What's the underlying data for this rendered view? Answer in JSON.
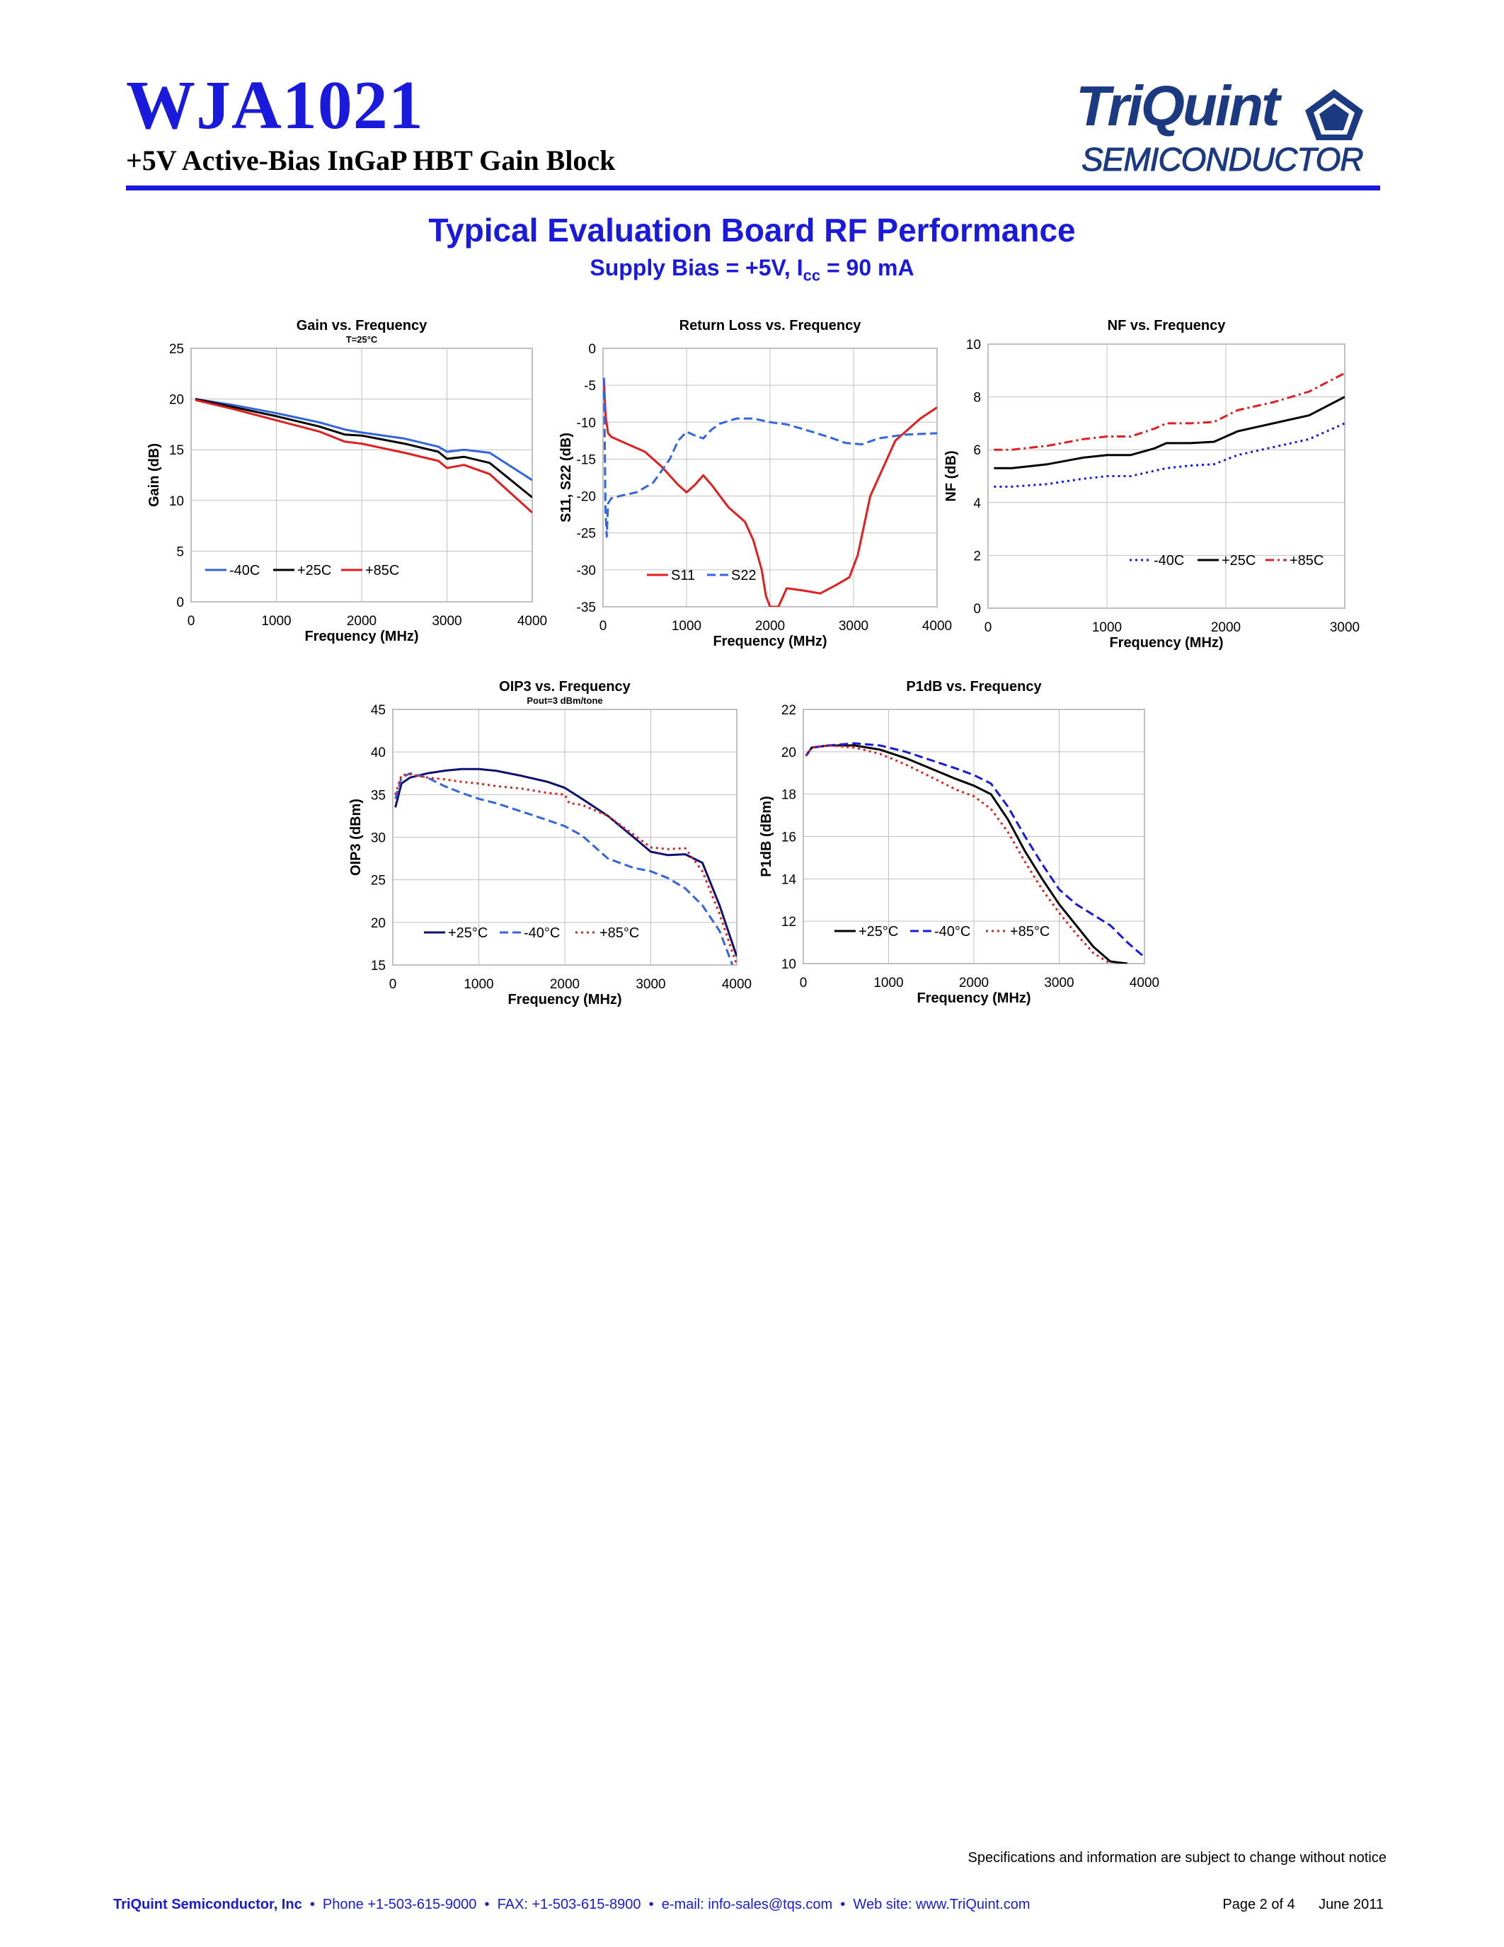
{
  "header": {
    "part_number": "WJA1021",
    "subtitle": "+5V Active-Bias InGaP HBT Gain Block",
    "logo_line1": "TriQuint",
    "logo_line2": "SEMICONDUCTOR"
  },
  "page_title": "Typical Evaluation Board RF Performance",
  "page_subtitle": {
    "prefix": "Supply Bias = +5V, I",
    "subscript": "cc",
    "suffix": " = 90 mA"
  },
  "colors": {
    "brand_blue": "#1a1adc",
    "red": "#e02020",
    "blue": "#3366dd",
    "black": "#000000",
    "navy": "#101070"
  },
  "chart_data": [
    {
      "type": "line",
      "title": "Gain vs. Frequency",
      "subtitle": "T=25°C",
      "xlabel": "Frequency (MHz)",
      "ylabel": "Gain (dB)",
      "xlim": [
        0,
        4000
      ],
      "ylim": [
        0,
        25
      ],
      "xticks": [
        0,
        1000,
        2000,
        3000,
        4000
      ],
      "yticks": [
        0,
        5,
        10,
        15,
        20,
        25
      ],
      "grid": true,
      "legend_position": "bottom-left",
      "series": [
        {
          "name": "-40C",
          "color": "#3366dd",
          "dash": "solid",
          "x": [
            50,
            500,
            1000,
            1500,
            1800,
            2000,
            2500,
            2900,
            3000,
            3200,
            3500,
            4000
          ],
          "y": [
            20.0,
            19.4,
            18.6,
            17.7,
            17.0,
            16.7,
            16.1,
            15.3,
            14.8,
            15.0,
            14.7,
            12.0
          ]
        },
        {
          "name": "+25C",
          "color": "#000000",
          "dash": "solid",
          "x": [
            50,
            500,
            1000,
            1500,
            1800,
            2000,
            2500,
            2900,
            3000,
            3200,
            3500,
            4000
          ],
          "y": [
            20.0,
            19.2,
            18.3,
            17.3,
            16.5,
            16.4,
            15.6,
            14.8,
            14.1,
            14.3,
            13.7,
            10.3
          ]
        },
        {
          "name": "+85C",
          "color": "#e02020",
          "dash": "solid",
          "x": [
            50,
            500,
            1000,
            1500,
            1800,
            2000,
            2500,
            2900,
            3000,
            3200,
            3500,
            4000
          ],
          "y": [
            19.9,
            19.0,
            17.9,
            16.8,
            15.8,
            15.6,
            14.7,
            13.9,
            13.2,
            13.5,
            12.6,
            8.8
          ]
        }
      ]
    },
    {
      "type": "line",
      "title": "Return Loss vs. Frequency",
      "xlabel": "Frequency (MHz)",
      "ylabel": "S11, S22 (dB)",
      "xlim": [
        0,
        4000
      ],
      "ylim": [
        -35,
        0
      ],
      "xticks": [
        0,
        1000,
        2000,
        3000,
        4000
      ],
      "yticks": [
        0,
        -5,
        -10,
        -15,
        -20,
        -25,
        -30,
        -35
      ],
      "grid": true,
      "legend_position": "bottom-left",
      "series": [
        {
          "name": "S11",
          "color": "#e02020",
          "dash": "solid",
          "x": [
            10,
            30,
            60,
            100,
            300,
            500,
            700,
            900,
            1000,
            1100,
            1200,
            1300,
            1500,
            1700,
            1800,
            1900,
            1950,
            2000,
            2100,
            2200,
            2400,
            2600,
            2800,
            2950,
            3050,
            3200,
            3500,
            3800,
            4000
          ],
          "y": [
            -4,
            -9,
            -11.5,
            -12,
            -13,
            -14,
            -16,
            -18.5,
            -19.5,
            -18.5,
            -17.2,
            -18.5,
            -21.5,
            -23.5,
            -26,
            -30,
            -33.5,
            -35,
            -35,
            -32.5,
            -32.8,
            -33.2,
            -32,
            -31,
            -28,
            -20,
            -12.5,
            -9.5,
            -8
          ]
        },
        {
          "name": "S22",
          "color": "#3366dd",
          "dash": "dashed",
          "x": [
            10,
            20,
            30,
            45,
            60,
            100,
            200,
            400,
            600,
            800,
            900,
            1000,
            1100,
            1200,
            1300,
            1400,
            1600,
            1800,
            2000,
            2200,
            2500,
            2700,
            2900,
            3100,
            3300,
            3600,
            4000
          ],
          "y": [
            -4,
            -12,
            -22,
            -25.5,
            -21,
            -20.3,
            -20,
            -19.5,
            -18.2,
            -15,
            -12.5,
            -11.3,
            -11.8,
            -12.2,
            -11,
            -10.2,
            -9.5,
            -9.5,
            -10,
            -10.3,
            -11.3,
            -12,
            -12.8,
            -13,
            -12.2,
            -11.7,
            -11.5
          ]
        }
      ]
    },
    {
      "type": "line",
      "title": "NF vs. Frequency",
      "xlabel": "Frequency (MHz)",
      "ylabel": "NF (dB)",
      "xlim": [
        0,
        3000
      ],
      "ylim": [
        0,
        10
      ],
      "xticks": [
        0,
        1000,
        2000,
        3000
      ],
      "yticks": [
        0,
        2,
        4,
        6,
        8,
        10
      ],
      "grid": true,
      "legend_position": "middle-right",
      "series": [
        {
          "name": "-40C",
          "color": "#1a1adc",
          "dash": "dotted",
          "x": [
            50,
            200,
            500,
            800,
            1000,
            1200,
            1400,
            1500,
            1700,
            1900,
            2100,
            2400,
            2700,
            3000
          ],
          "y": [
            4.6,
            4.6,
            4.7,
            4.9,
            5.0,
            5.0,
            5.2,
            5.3,
            5.4,
            5.45,
            5.8,
            6.1,
            6.4,
            7.0
          ]
        },
        {
          "name": "+25C",
          "color": "#000000",
          "dash": "solid",
          "x": [
            50,
            200,
            500,
            800,
            1000,
            1200,
            1400,
            1500,
            1700,
            1900,
            2100,
            2400,
            2700,
            3000
          ],
          "y": [
            5.3,
            5.3,
            5.45,
            5.7,
            5.8,
            5.8,
            6.05,
            6.25,
            6.25,
            6.3,
            6.7,
            7.0,
            7.3,
            8.0
          ]
        },
        {
          "name": "+85C",
          "color": "#e02020",
          "dash": "dashdot",
          "x": [
            50,
            200,
            500,
            800,
            1000,
            1200,
            1400,
            1500,
            1700,
            1900,
            2100,
            2400,
            2700,
            3000
          ],
          "y": [
            6.0,
            6.0,
            6.15,
            6.4,
            6.5,
            6.5,
            6.8,
            7.0,
            7.0,
            7.05,
            7.5,
            7.8,
            8.2,
            8.9
          ]
        }
      ]
    },
    {
      "type": "line",
      "title": "OIP3 vs. Frequency",
      "subtitle": "Pout=3 dBm/tone",
      "xlabel": "Frequency (MHz)",
      "ylabel": "OIP3 (dBm)",
      "xlim": [
        0,
        4000
      ],
      "ylim": [
        15,
        45
      ],
      "xticks": [
        0,
        1000,
        2000,
        3000,
        4000
      ],
      "yticks": [
        15,
        20,
        25,
        30,
        35,
        40,
        45
      ],
      "grid": true,
      "legend_position": "bottom-left",
      "series": [
        {
          "name": "+25°C",
          "color": "#101070",
          "dash": "solid",
          "x": [
            30,
            100,
            200,
            400,
            600,
            800,
            1000,
            1200,
            1500,
            1800,
            2000,
            2200,
            2500,
            2800,
            3000,
            3200,
            3400,
            3600,
            3800,
            4000
          ],
          "y": [
            33.5,
            36.3,
            37.0,
            37.5,
            37.8,
            38.0,
            38.0,
            37.8,
            37.2,
            36.5,
            35.8,
            34.5,
            32.5,
            30.0,
            28.3,
            27.9,
            28.0,
            27.0,
            22.0,
            16.0
          ]
        },
        {
          "name": "-40°C",
          "color": "#3366dd",
          "dash": "dashed",
          "x": [
            30,
            100,
            200,
            400,
            600,
            800,
            1000,
            1200,
            1500,
            1800,
            2000,
            2200,
            2500,
            2800,
            3000,
            3200,
            3400,
            3600,
            3800,
            3950
          ],
          "y": [
            34.5,
            37.0,
            37.5,
            37.0,
            36.0,
            35.2,
            34.5,
            34.0,
            33.0,
            32.0,
            31.3,
            30.2,
            27.5,
            26.4,
            26.0,
            25.2,
            24.0,
            22.0,
            19.0,
            15.0
          ]
        },
        {
          "name": "+85°C",
          "color": "#e02020",
          "dash": "dotted",
          "x": [
            30,
            100,
            200,
            400,
            600,
            800,
            1000,
            1200,
            1500,
            1800,
            2000,
            2050,
            2200,
            2500,
            2800,
            3000,
            3200,
            3400,
            3600,
            3800,
            4000
          ],
          "y": [
            35.0,
            37.3,
            37.4,
            37.0,
            36.8,
            36.5,
            36.3,
            36.0,
            35.7,
            35.2,
            35.0,
            34.0,
            33.8,
            32.5,
            30.3,
            28.8,
            28.6,
            28.7,
            26.0,
            21.0,
            15.0
          ]
        }
      ]
    },
    {
      "type": "line",
      "title": "P1dB vs. Frequency",
      "xlabel": "Frequency (MHz)",
      "ylabel": "P1dB (dBm)",
      "xlim": [
        0,
        4000
      ],
      "ylim": [
        10,
        22
      ],
      "xticks": [
        0,
        1000,
        2000,
        3000,
        4000
      ],
      "yticks": [
        10,
        12,
        14,
        16,
        18,
        20,
        22
      ],
      "grid": true,
      "legend_position": "bottom-left",
      "series": [
        {
          "name": "+25°C",
          "color": "#000000",
          "dash": "solid",
          "x": [
            30,
            100,
            300,
            600,
            900,
            1200,
            1500,
            1800,
            2000,
            2200,
            2400,
            2600,
            2800,
            3000,
            3200,
            3400,
            3600,
            3800
          ],
          "y": [
            19.8,
            20.2,
            20.3,
            20.3,
            20.1,
            19.7,
            19.2,
            18.7,
            18.4,
            18.0,
            16.8,
            15.3,
            14.0,
            12.8,
            11.8,
            10.8,
            10.1,
            10.0
          ]
        },
        {
          "name": "-40°C",
          "color": "#1a1adc",
          "dash": "dashed",
          "x": [
            30,
            100,
            300,
            600,
            900,
            1200,
            1500,
            1800,
            2000,
            2200,
            2400,
            2600,
            2800,
            3000,
            3200,
            3400,
            3600,
            3800,
            4000
          ],
          "y": [
            19.8,
            20.2,
            20.3,
            20.4,
            20.3,
            20.0,
            19.6,
            19.2,
            18.9,
            18.5,
            17.4,
            16.0,
            14.7,
            13.5,
            12.8,
            12.3,
            11.8,
            11.0,
            10.3
          ]
        },
        {
          "name": "+85°C",
          "color": "#e02020",
          "dash": "dotted",
          "x": [
            30,
            100,
            300,
            600,
            900,
            1200,
            1500,
            1800,
            2000,
            2200,
            2400,
            2600,
            2800,
            3000,
            3200,
            3400,
            3600
          ],
          "y": [
            19.8,
            20.2,
            20.3,
            20.2,
            19.9,
            19.4,
            18.8,
            18.2,
            17.9,
            17.3,
            16.2,
            14.8,
            13.5,
            12.4,
            11.4,
            10.5,
            10.0
          ]
        }
      ]
    }
  ],
  "footer": {
    "disclaimer": "Specifications and information are subject to change without notice",
    "company": "TriQuint Semiconductor, Inc",
    "contact": "  •  Phone +1-503-615-9000  •  FAX: +1-503-615-8900  •  e-mail: info-sales@tqs.com  •  Web site: www.TriQuint.com",
    "page": "Page 2 of 4",
    "date": "June 2011"
  }
}
